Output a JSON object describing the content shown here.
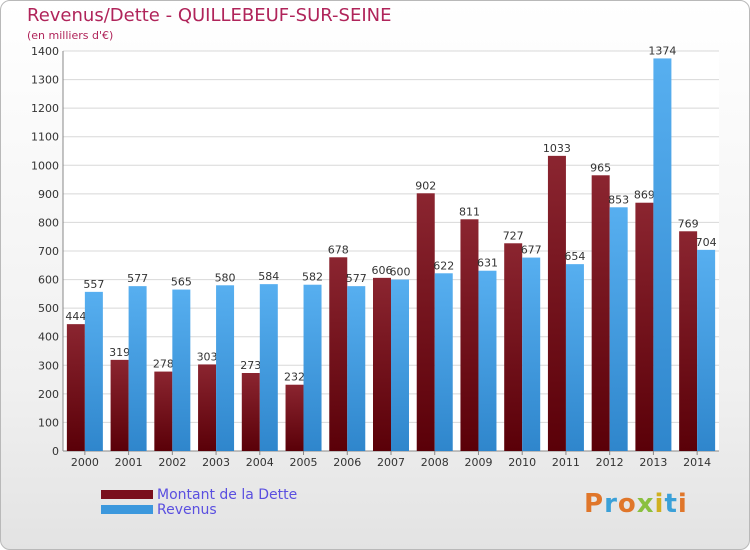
{
  "title": "Revenus/Dette - QUILLEBEUF-SUR-SEINE",
  "subtitle": "(en milliers d'€)",
  "logo": {
    "text": "Proxiti",
    "colors": [
      "#e0762a",
      "#3aa0d8",
      "#e0762a",
      "#8ac03f",
      "#d0b020",
      "#3aa0d8",
      "#e0762a"
    ]
  },
  "colors": {
    "dette": "#7a0f1c",
    "revenus": "#3c98dd",
    "title": "#b0245a",
    "legend_text": "#5a4fe0"
  },
  "legend": [
    {
      "label": "Montant de la Dette",
      "color": "#7a0f1c"
    },
    {
      "label": "Revenus",
      "color": "#3c98dd"
    }
  ],
  "chart_data": {
    "type": "bar",
    "title": "Revenus/Dette - QUILLEBEUF-SUR-SEINE",
    "ylabel": "(en milliers d'€)",
    "categories": [
      "2000",
      "2001",
      "2002",
      "2003",
      "2004",
      "2005",
      "2006",
      "2007",
      "2008",
      "2009",
      "2010",
      "2011",
      "2012",
      "2013",
      "2014"
    ],
    "series": [
      {
        "name": "Montant de la Dette",
        "values": [
          444,
          319,
          278,
          303,
          273,
          232,
          678,
          606,
          902,
          811,
          727,
          1033,
          965,
          869,
          769
        ]
      },
      {
        "name": "Revenus",
        "values": [
          557,
          577,
          565,
          580,
          584,
          582,
          577,
          600,
          622,
          631,
          677,
          654,
          853,
          1374,
          704
        ]
      }
    ],
    "ylim": [
      0,
      1400
    ],
    "yticks": [
      0,
      100,
      200,
      300,
      400,
      500,
      600,
      700,
      800,
      900,
      1000,
      1100,
      1200,
      1300,
      1400
    ],
    "grid": true,
    "legend_position": "bottom-left"
  }
}
